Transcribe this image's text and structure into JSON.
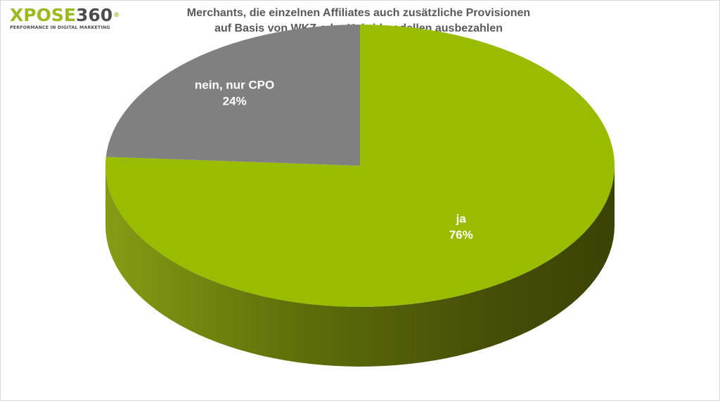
{
  "logo": {
    "part1": "XPOSE",
    "part2": "360",
    "registered": "®",
    "tagline": "PERFORMANCE IN DIGITAL MARKETING"
  },
  "colors": {
    "accent": "#9bbb1c",
    "ja_top": "#9bbb00",
    "nein_top": "#808080",
    "title_text": "#595959"
  },
  "chart_data": {
    "type": "pie",
    "title_lines": [
      "Merchants, die einzelnen Affiliates auch zusätzliche Provisionen",
      "auf Basis von WKZ oder Hybridmodellen ausbezahlen"
    ],
    "slices": [
      {
        "name": "ja",
        "value": 76,
        "label": "76%"
      },
      {
        "name": "nein, nur CPO",
        "value": 24,
        "label": "24%"
      }
    ],
    "style": "3d",
    "legend": "none"
  }
}
